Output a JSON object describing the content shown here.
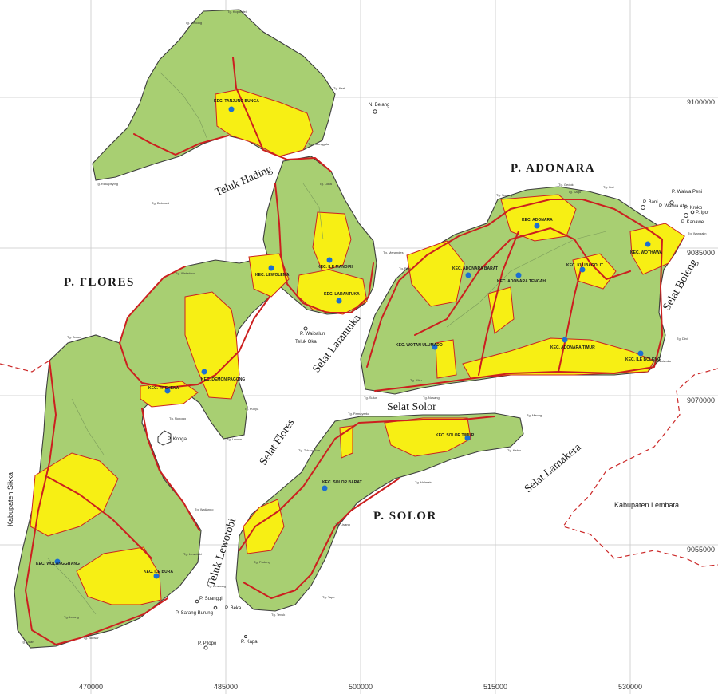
{
  "grid": {
    "x_labels": [
      "470000",
      "485000",
      "500000",
      "515000",
      "530000"
    ],
    "y_labels": [
      "9100000",
      "9085000",
      "9070000",
      "9055000"
    ]
  },
  "islands": {
    "flores": "P. FLORES",
    "adonara": "P. ADONARA",
    "solor": "P. SOLOR"
  },
  "waters": {
    "teluk_hading": "Teluk Hading",
    "selat_larantuka": "Selat Larantuka",
    "selat_solor": "Selat Solor",
    "selat_flores": "Selat Flores",
    "selat_lamakera": "Selat Lamakera",
    "selat_boleng": "Selat Boleng",
    "teluk_lewotobi": "Teluk Lewotobi",
    "teluk_oka": "Teluk Oka"
  },
  "regencies": {
    "sikka": "Kabupaten Sikka",
    "lembata": "Kabupaten Lembata"
  },
  "districts": [
    "KEC. TANJUNG BUNGA",
    "KEC. ILE MANDIRI",
    "KEC. LEWOLEMA",
    "KEC. LARANTUKA",
    "KEC. DEMON PAGONG",
    "KEC. TITEHENA",
    "KEC. WULANGGITANG",
    "KEC. ILE BURA",
    "KEC. ADONARA",
    "KEC. WOTHAWA",
    "KEC. KLUBAGOLIT",
    "KEC. ADONARA BARAT",
    "KEC. ADONARA TENGAH",
    "KEC. WOTAN ULUMADO",
    "KEC. ADONARA TIMUR",
    "KEC. ILE BOLENG",
    "KEC. SOLOR TIMUR",
    "KEC. SOLOR BARAT"
  ],
  "small_islands": {
    "konga": "P. Konga",
    "waibalun": "P. Waibalun",
    "suanggi": "P. Suanggi",
    "sarang_burung": "P. Sarang Burung",
    "beka": "P. Beka",
    "kapal": "P. Kapal",
    "pilopo": "P. Pilopo",
    "waiwa_peni": "P. Waiwa Peni",
    "waiwa_atu": "P. Waiwa Atu",
    "kroko": "P. Kroko",
    "ipor": "P. Ipor",
    "kanawe": "P. Kanawe",
    "bani": "P. Bani",
    "n_belang": "N. Belang"
  },
  "places": [
    "Tg. Kopondei",
    "Tg. Gedong",
    "Tg. Kerti",
    "Tg. Honnggala",
    "Tg. Rakapeying",
    "Tg. Bolobasi",
    "Tg. Loba",
    "Tg. Watadoro",
    "Tg. Menandes",
    "Tg. Bulan",
    "Tg. Nobong",
    "Tg. Punya",
    "Tg. Lemon",
    "Tg. Wailango",
    "Tg. Lewotobi",
    "Tg. Lelang",
    "Tg. Todwar",
    "Tg. Duan",
    "Tg. Gedok",
    "Tg. Sagu",
    "Tg. Kaii",
    "Tg. Sagunyi",
    "Tg. Puni",
    "Tg. Waiwuku",
    "Tg. Dini",
    "Tg. Kiku",
    "Tg. Nusang",
    "Tg. Sulun",
    "Tg. Pamayerko",
    "Tg. Kehlo",
    "Tg. Menag",
    "Tg. Halmain",
    "Tg. Tulung Bon",
    "Tg. Lisang",
    "Tg. Pudung",
    "Tg. Tapo",
    "Tg. Tevuk",
    "Tg. Wangalin",
    "Tg. Lewaung"
  ],
  "colors": {
    "land": "#a8cf72",
    "settlement_zone": "#f7ef14",
    "road": "#cc1f1f",
    "district_center": "#1c6fd1",
    "grid": "#c8c8c8"
  }
}
